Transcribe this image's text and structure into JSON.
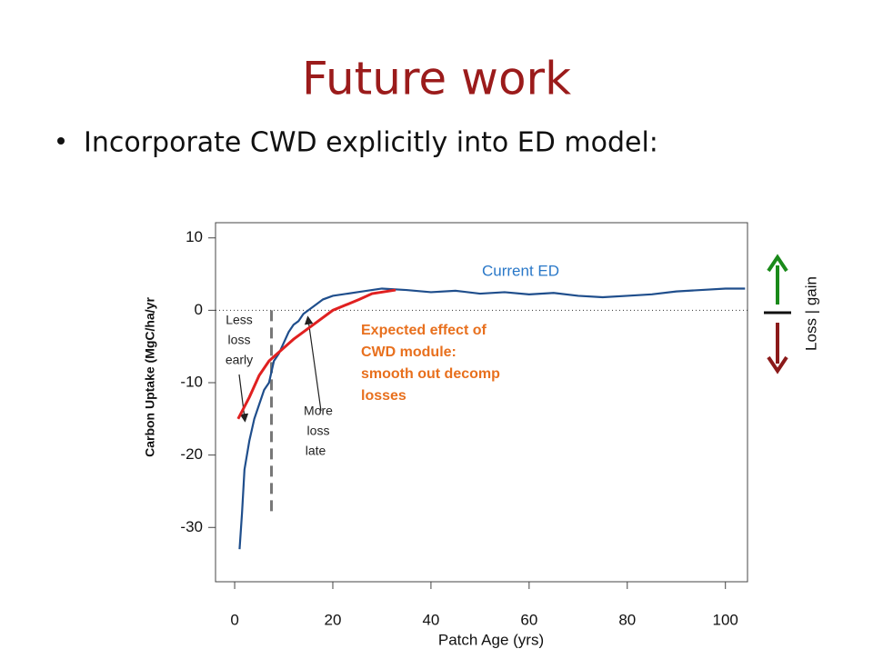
{
  "title": "Future work",
  "bullet": "Incorporate CWD explicitly into ED model:",
  "side_label": "Loss | gain",
  "chart_data": {
    "type": "line",
    "xlabel": "Patch Age (yrs)",
    "ylabel": "Carbon Uptake (MgC/ha/yr",
    "xlim": [
      -3.9,
      104.5
    ],
    "ylim": [
      -37.5,
      12.1
    ],
    "xticks": [
      0,
      20,
      40,
      60,
      80,
      100
    ],
    "yticks": [
      10,
      0,
      -10,
      -20,
      -30
    ],
    "hline": 0,
    "reference_line": {
      "x": 7.5,
      "y": [
        0,
        -28
      ]
    },
    "series": [
      {
        "name": "Current ED",
        "color": "#1f4e8c",
        "x": [
          1,
          1.5,
          2,
          3,
          4,
          5,
          6,
          7,
          8,
          9,
          10,
          11,
          12,
          13,
          14,
          15,
          16,
          17,
          18,
          20,
          25,
          30,
          35,
          40,
          45,
          50,
          55,
          60,
          65,
          70,
          75,
          80,
          85,
          90,
          95,
          100,
          104
        ],
        "values": [
          -33,
          -28,
          -22,
          -18,
          -15,
          -13,
          -11,
          -10,
          -7,
          -6,
          -4.5,
          -3,
          -2,
          -1.5,
          -0.5,
          0,
          0.5,
          1,
          1.5,
          2,
          2.5,
          3,
          2.8,
          2.5,
          2.7,
          2.3,
          2.5,
          2.2,
          2.4,
          2,
          1.8,
          2,
          2.2,
          2.6,
          2.8,
          3,
          3
        ]
      },
      {
        "color": "#e02020",
        "x": [
          0.7,
          3,
          5,
          7,
          12,
          16,
          20,
          25.4,
          28,
          32.8
        ],
        "values": [
          -15,
          -12,
          -9,
          -7,
          -4,
          -2,
          0,
          1.5,
          2.3,
          2.8
        ]
      }
    ],
    "annotations": {
      "expected": [
        "Expected effect of",
        "CWD module:",
        "smooth out decomp",
        "losses"
      ],
      "early": [
        "Less",
        "loss",
        "early"
      ],
      "late": [
        "More",
        "loss",
        "late"
      ]
    }
  }
}
